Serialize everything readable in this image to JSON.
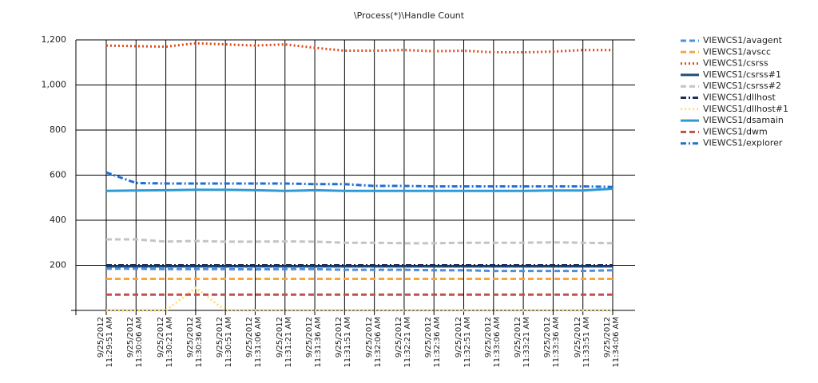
{
  "chart_data": {
    "type": "line",
    "title": "\\Process(*)\\Handle Count",
    "categories": [
      "9/25/2012 11:29:51 AM",
      "9/25/2012 11:30:06 AM",
      "9/25/2012 11:30:21 AM",
      "9/25/2012 11:30:36 AM",
      "9/25/2012 11:30:51 AM",
      "9/25/2012 11:31:06 AM",
      "9/25/2012 11:31:21 AM",
      "9/25/2012 11:31:36 AM",
      "9/25/2012 11:31:51 AM",
      "9/25/2012 11:32:06 AM",
      "9/25/2012 11:32:21 AM",
      "9/25/2012 11:32:36 AM",
      "9/25/2012 11:32:51 AM",
      "9/25/2012 11:33:06 AM",
      "9/25/2012 11:33:21 AM",
      "9/25/2012 11:33:36 AM",
      "9/25/2012 11:33:51 AM",
      "9/25/2012 11:34:06 AM"
    ],
    "ylim": [
      0,
      1200
    ],
    "yticks": [
      {
        "value": 200,
        "label": "200"
      },
      {
        "value": 400,
        "label": "400"
      },
      {
        "value": 600,
        "label": "600"
      },
      {
        "value": 800,
        "label": "800"
      },
      {
        "value": 1000,
        "label": "1,000"
      },
      {
        "value": 1200,
        "label": "1,200"
      }
    ],
    "grid": true,
    "legend": "right",
    "series": [
      {
        "name": "VIEWCS1/avagent",
        "color": "#4a8fe0",
        "dash": "dashed",
        "values": [
          185,
          185,
          183,
          183,
          183,
          182,
          183,
          183,
          180,
          180,
          180,
          178,
          178,
          175,
          175,
          175,
          175,
          178
        ]
      },
      {
        "name": "VIEWCS1/avscc",
        "color": "#f9a53a",
        "dash": "dashed",
        "values": [
          140,
          140,
          140,
          140,
          140,
          140,
          140,
          140,
          140,
          140,
          140,
          140,
          140,
          140,
          140,
          140,
          140,
          140
        ]
      },
      {
        "name": "VIEWCS1/csrss",
        "color": "#e04b1a",
        "dash": "dotted",
        "values": [
          1175,
          1172,
          1170,
          1185,
          1180,
          1175,
          1180,
          1165,
          1152,
          1152,
          1155,
          1150,
          1152,
          1145,
          1145,
          1148,
          1155,
          1155
        ]
      },
      {
        "name": "VIEWCS1/csrss#1",
        "color": "#1f4e79",
        "dash": "solid",
        "values": [
          195,
          195,
          195,
          195,
          195,
          195,
          195,
          195,
          195,
          195,
          195,
          195,
          195,
          195,
          195,
          195,
          195,
          195
        ]
      },
      {
        "name": "VIEWCS1/csrss#2",
        "color": "#c4c4c4",
        "dash": "dashed",
        "values": [
          315,
          315,
          305,
          308,
          305,
          305,
          306,
          305,
          300,
          300,
          298,
          298,
          300,
          300,
          300,
          302,
          300,
          298
        ]
      },
      {
        "name": "VIEWCS1/dllhost",
        "color": "#1c2e5a",
        "dash": "dashdot",
        "values": [
          200,
          200,
          200,
          200,
          200,
          200,
          200,
          200,
          200,
          200,
          200,
          200,
          200,
          200,
          200,
          200,
          200,
          200
        ]
      },
      {
        "name": "VIEWCS1/dllhost#1",
        "color": "#ffe07a",
        "dash": "dotted",
        "values": [
          0,
          0,
          0,
          100,
          0,
          0,
          0,
          0,
          0,
          0,
          0,
          0,
          0,
          0,
          0,
          0,
          0,
          0
        ]
      },
      {
        "name": "VIEWCS1/dsamain",
        "color": "#2e9bd6",
        "dash": "solid",
        "values": [
          530,
          532,
          533,
          535,
          535,
          533,
          530,
          533,
          530,
          530,
          530,
          530,
          530,
          530,
          530,
          532,
          532,
          540
        ]
      },
      {
        "name": "VIEWCS1/dwm",
        "color": "#c0504d",
        "dash": "dashed",
        "values": [
          70,
          70,
          70,
          70,
          70,
          70,
          70,
          70,
          70,
          70,
          70,
          70,
          70,
          70,
          70,
          70,
          70,
          70
        ]
      },
      {
        "name": "VIEWCS1/explorer",
        "color": "#1f6fd6",
        "dash": "dashdot",
        "values": [
          612,
          565,
          563,
          563,
          563,
          563,
          563,
          560,
          560,
          552,
          552,
          550,
          550,
          550,
          550,
          550,
          550,
          548
        ]
      }
    ]
  }
}
